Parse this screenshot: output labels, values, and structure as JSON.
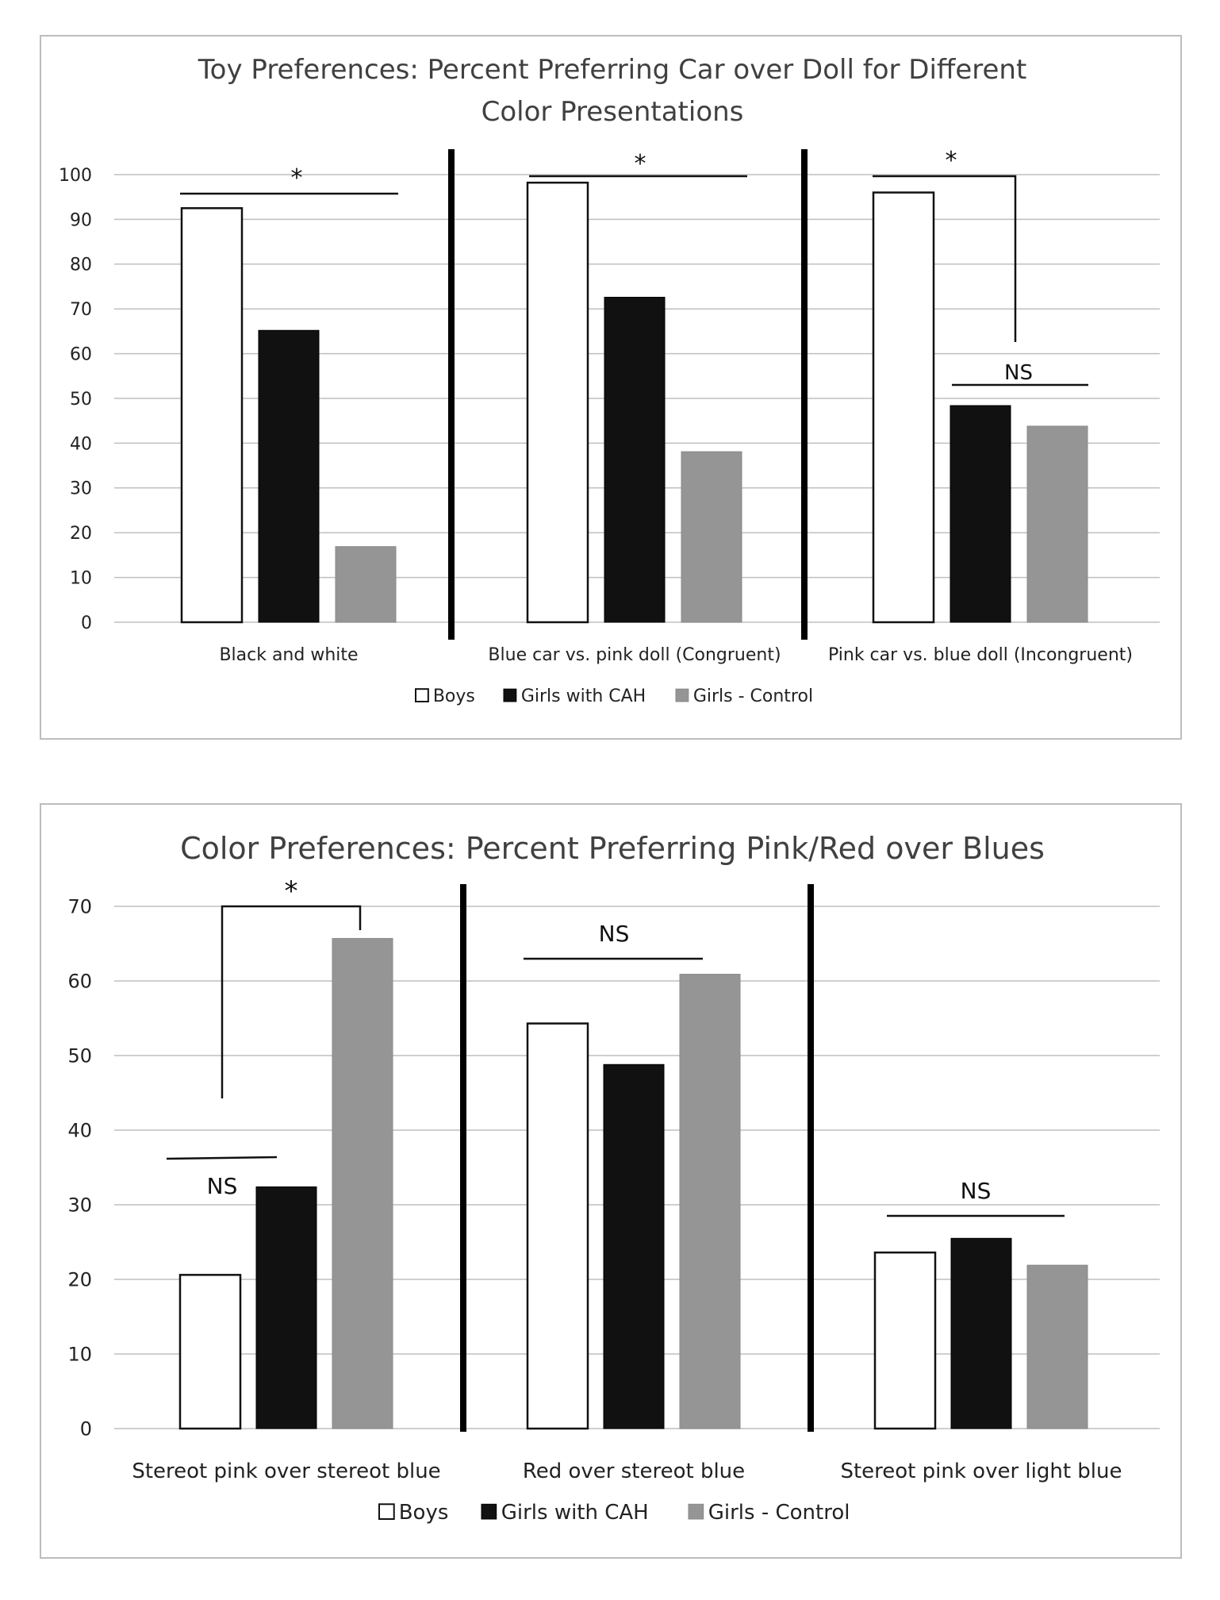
{
  "colors": {
    "boys": "#ffffff",
    "cah": "#111111",
    "control": "#959595",
    "grid": "#bfbfbf",
    "divider": "#000000"
  },
  "chart_data": [
    {
      "type": "bar",
      "title_lines": [
        "Toy Preferences: Percent Preferring Car over Doll for Different",
        "Color Presentations"
      ],
      "categories": [
        "Black and white",
        "Blue car vs. pink doll (Congruent)",
        "Pink car vs. blue doll  (Incongruent)"
      ],
      "series": [
        {
          "name": "Boys",
          "values": [
            92.5,
            98.2,
            96
          ]
        },
        {
          "name": "Girls with CAH",
          "values": [
            65.2,
            72.6,
            48.4
          ]
        },
        {
          "name": "Girls - Control",
          "values": [
            16.9,
            38.1,
            43.8
          ]
        }
      ],
      "ylim": [
        0,
        100
      ],
      "yticks": [
        0,
        10,
        20,
        30,
        40,
        50,
        60,
        70,
        80,
        90,
        100
      ],
      "grid": true,
      "legend_position": "bottom",
      "annotations": [
        {
          "text": "*",
          "category": 0
        },
        {
          "text": "*",
          "category": 1
        },
        {
          "text": "*",
          "category": 2
        },
        {
          "text": "NS",
          "category": 2
        }
      ]
    },
    {
      "type": "bar",
      "title_lines": [
        "Color Preferences: Percent Preferring Pink/Red over Blues"
      ],
      "categories": [
        "Stereot pink over stereot blue",
        "Red over stereot blue",
        "Stereot pink over light blue"
      ],
      "series": [
        {
          "name": "Boys",
          "values": [
            20.6,
            54.3,
            23.6
          ]
        },
        {
          "name": "Girls with CAH",
          "values": [
            32.4,
            48.8,
            25.5
          ]
        },
        {
          "name": "Girls - Control",
          "values": [
            65.7,
            60.9,
            21.9
          ]
        }
      ],
      "ylim": [
        0,
        70
      ],
      "yticks": [
        0,
        10,
        20,
        30,
        40,
        50,
        60,
        70
      ],
      "grid": true,
      "legend_position": "bottom",
      "annotations": [
        {
          "text": "*",
          "category": 0
        },
        {
          "text": "NS",
          "category": 0
        },
        {
          "text": "NS",
          "category": 1
        },
        {
          "text": "NS",
          "category": 2
        }
      ]
    }
  ]
}
